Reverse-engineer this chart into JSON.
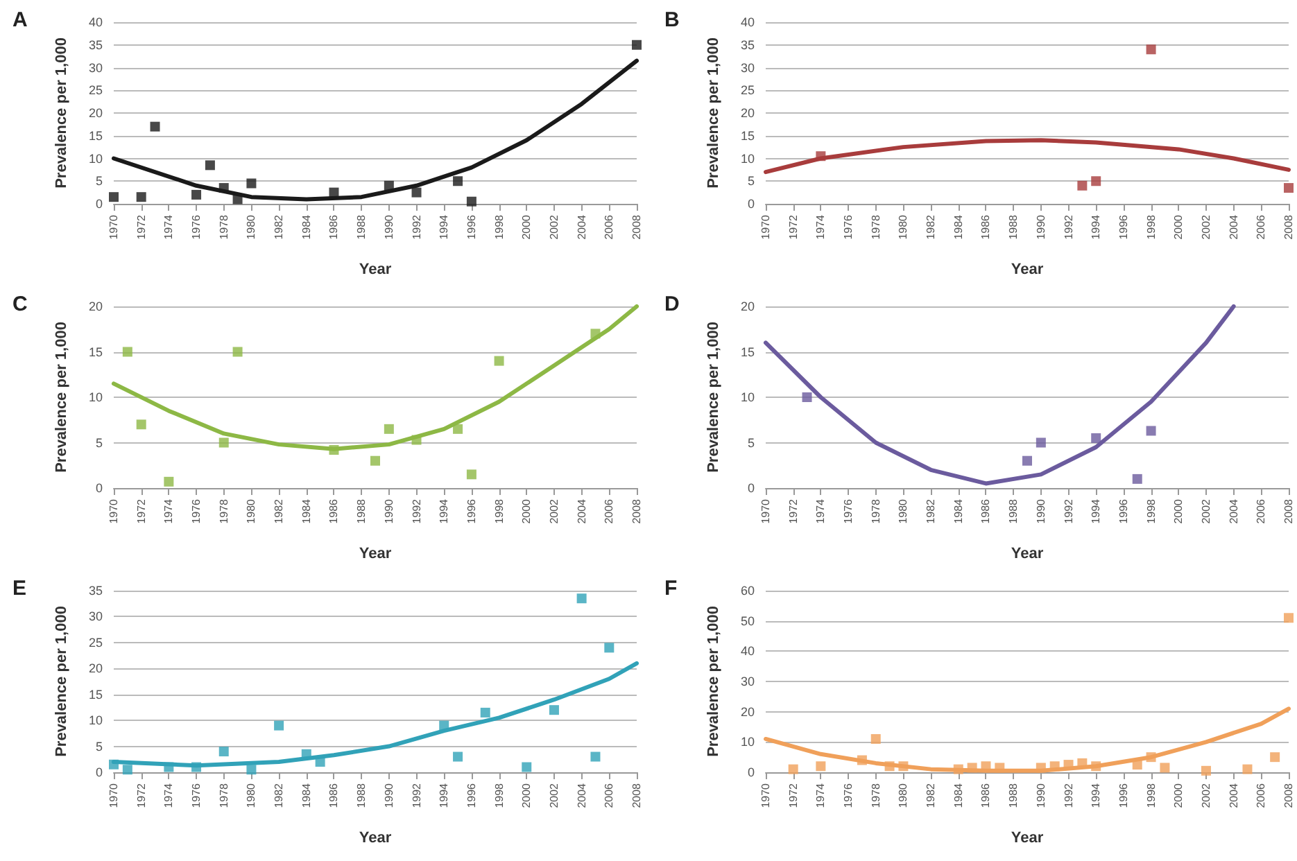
{
  "chart_data": [
    {
      "type": "scatter",
      "title": "A",
      "xlabel": "Year",
      "ylabel": "Prevalence per 1,000",
      "xlim": [
        1970,
        2008
      ],
      "xticks": [
        1970,
        1972,
        1974,
        1976,
        1978,
        1980,
        1982,
        1984,
        1986,
        1988,
        1990,
        1992,
        1994,
        1996,
        1998,
        2000,
        2002,
        2004,
        2006,
        2008
      ],
      "ylim": [
        0,
        40
      ],
      "yticks": [
        0,
        5,
        10,
        15,
        20,
        25,
        30,
        35,
        40
      ],
      "grid": "y",
      "marker": "square",
      "series": [
        {
          "color": "#1a1a1a",
          "x": [
            1970,
            1972,
            1973,
            1976,
            1977,
            1978,
            1979,
            1980,
            1986,
            1990,
            1992,
            1995,
            1996,
            2008
          ],
          "values": [
            1.5,
            1.5,
            17,
            2,
            8.5,
            3.5,
            1,
            4.5,
            2.5,
            4,
            2.5,
            5,
            0.5,
            35
          ]
        },
        {
          "type": "line",
          "marker": "none",
          "color": "#1a1a1a",
          "x": [
            1970,
            1976,
            1980,
            1984,
            1988,
            1992,
            1996,
            2000,
            2004,
            2008
          ],
          "values": [
            10,
            4,
            1.5,
            1,
            1.5,
            4,
            8,
            14,
            22,
            31.5
          ]
        }
      ]
    },
    {
      "type": "scatter",
      "title": "B",
      "xlabel": "Year",
      "ylabel": "Prevalence per 1,000",
      "xlim": [
        1970,
        2008
      ],
      "xticks": [
        1970,
        1972,
        1974,
        1976,
        1978,
        1980,
        1982,
        1984,
        1986,
        1988,
        1990,
        1992,
        1994,
        1996,
        1998,
        2000,
        2002,
        2004,
        2006,
        2008
      ],
      "ylim": [
        0,
        40
      ],
      "yticks": [
        0,
        5,
        10,
        15,
        20,
        25,
        30,
        35,
        40
      ],
      "grid": "y",
      "marker": "square",
      "series": [
        {
          "color": "#a83c3c",
          "x": [
            1974,
            1993,
            1994,
            1998,
            2008
          ],
          "values": [
            10.5,
            4,
            5,
            34,
            3.5
          ]
        },
        {
          "type": "line",
          "marker": "none",
          "color": "#a83c3c",
          "x": [
            1970,
            1974,
            1980,
            1986,
            1990,
            1994,
            2000,
            2004,
            2008
          ],
          "values": [
            7,
            10,
            12.5,
            13.8,
            14,
            13.5,
            12,
            10,
            7.5
          ]
        }
      ]
    },
    {
      "type": "scatter",
      "title": "C",
      "xlabel": "Year",
      "ylabel": "Prevalence per 1,000",
      "xlim": [
        1970,
        2008
      ],
      "xticks": [
        1970,
        1972,
        1974,
        1976,
        1978,
        1980,
        1982,
        1984,
        1986,
        1988,
        1990,
        1992,
        1994,
        1996,
        1998,
        2000,
        2002,
        2004,
        2006,
        2008
      ],
      "ylim": [
        0,
        20
      ],
      "yticks": [
        0,
        5,
        10,
        15,
        20
      ],
      "grid": "y",
      "marker": "square",
      "series": [
        {
          "color": "#8db845",
          "x": [
            1971,
            1972,
            1974,
            1978,
            1979,
            1986,
            1989,
            1990,
            1992,
            1995,
            1996,
            1998,
            2005
          ],
          "values": [
            15,
            7,
            0.7,
            5,
            15,
            4.2,
            3,
            6.5,
            5.3,
            6.5,
            1.5,
            14,
            17
          ]
        },
        {
          "type": "line",
          "marker": "none",
          "color": "#8db845",
          "x": [
            1970,
            1974,
            1978,
            1982,
            1986,
            1990,
            1994,
            1998,
            2002,
            2006,
            2008
          ],
          "values": [
            11.5,
            8.5,
            6,
            4.8,
            4.3,
            4.8,
            6.5,
            9.5,
            13.5,
            17.5,
            20
          ]
        }
      ]
    },
    {
      "type": "scatter",
      "title": "D",
      "xlabel": "Year",
      "ylabel": "Prevalence per 1,000",
      "xlim": [
        1970,
        2008
      ],
      "xticks": [
        1970,
        1972,
        1974,
        1976,
        1978,
        1980,
        1982,
        1984,
        1986,
        1988,
        1990,
        1992,
        1994,
        1996,
        1998,
        2000,
        2002,
        2004,
        2006,
        2008
      ],
      "ylim": [
        0,
        20
      ],
      "yticks": [
        0,
        5,
        10,
        15,
        20
      ],
      "grid": "y",
      "marker": "square",
      "series": [
        {
          "color": "#6b5b9e",
          "x": [
            1973,
            1989,
            1990,
            1994,
            1997,
            1998
          ],
          "values": [
            10,
            3,
            5,
            5.5,
            1,
            6.3
          ]
        },
        {
          "type": "line",
          "marker": "none",
          "color": "#6b5b9e",
          "x": [
            1970,
            1974,
            1978,
            1982,
            1986,
            1990,
            1994,
            1998,
            2002,
            2004
          ],
          "values": [
            16,
            10,
            5,
            2,
            0.5,
            1.5,
            4.5,
            9.5,
            16,
            20
          ]
        }
      ]
    },
    {
      "type": "scatter",
      "title": "E",
      "xlabel": "Year",
      "ylabel": "Prevalence per 1,000",
      "xlim": [
        1970,
        2008
      ],
      "xticks": [
        1970,
        1972,
        1974,
        1976,
        1978,
        1980,
        1982,
        1984,
        1986,
        1988,
        1990,
        1992,
        1994,
        1996,
        1998,
        2000,
        2002,
        2004,
        2006,
        2008
      ],
      "ylim": [
        0,
        35
      ],
      "yticks": [
        0,
        5,
        10,
        15,
        20,
        25,
        30,
        35
      ],
      "grid": "y",
      "marker": "square",
      "series": [
        {
          "color": "#31a2b8",
          "x": [
            1970,
            1971,
            1974,
            1976,
            1978,
            1980,
            1982,
            1984,
            1985,
            1994,
            1995,
            1997,
            2000,
            2002,
            2004,
            2005,
            2006
          ],
          "values": [
            1.5,
            0.5,
            1,
            1,
            4,
            0.5,
            9,
            3.5,
            2,
            9,
            3,
            11.5,
            1,
            12,
            33.5,
            3,
            24
          ]
        },
        {
          "type": "line",
          "marker": "none",
          "color": "#31a2b8",
          "x": [
            1970,
            1976,
            1982,
            1986,
            1990,
            1994,
            1998,
            2002,
            2006,
            2008
          ],
          "values": [
            2,
            1.3,
            2,
            3.3,
            5,
            8,
            10.5,
            14,
            18,
            21
          ]
        }
      ]
    },
    {
      "type": "scatter",
      "title": "F",
      "xlabel": "Year",
      "ylabel": "Prevalence per 1,000",
      "xlim": [
        1970,
        2008
      ],
      "xticks": [
        1970,
        1972,
        1974,
        1976,
        1978,
        1980,
        1982,
        1984,
        1986,
        1988,
        1990,
        1992,
        1994,
        1996,
        1998,
        2000,
        2002,
        2004,
        2006,
        2008
      ],
      "ylim": [
        0,
        60
      ],
      "yticks": [
        0,
        10,
        20,
        30,
        40,
        50,
        60
      ],
      "grid": "y",
      "marker": "square",
      "series": [
        {
          "color": "#f0a05a",
          "x": [
            1972,
            1974,
            1977,
            1978,
            1979,
            1980,
            1984,
            1985,
            1986,
            1987,
            1990,
            1991,
            1992,
            1993,
            1994,
            1997,
            1998,
            1999,
            2002,
            2005,
            2007,
            2008
          ],
          "values": [
            1,
            2,
            4,
            11,
            2,
            2,
            1,
            1.5,
            2,
            1.5,
            1.5,
            2,
            2.5,
            3,
            2,
            2.5,
            5,
            1.5,
            0.5,
            1,
            5,
            51
          ]
        },
        {
          "type": "line",
          "marker": "none",
          "color": "#f0a05a",
          "x": [
            1970,
            1974,
            1978,
            1982,
            1986,
            1990,
            1994,
            1998,
            2002,
            2006,
            2008
          ],
          "values": [
            11,
            6,
            3,
            1,
            0.5,
            0.5,
            2,
            5,
            10,
            16,
            21
          ]
        }
      ]
    }
  ]
}
